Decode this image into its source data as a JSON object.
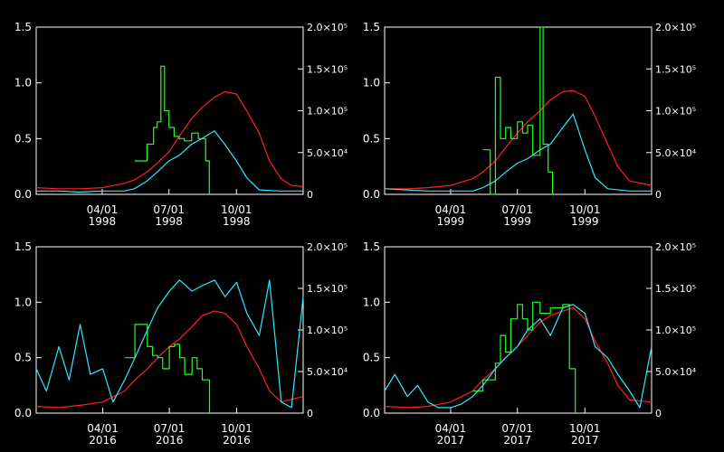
{
  "chart_data": [
    {
      "type": "line",
      "title": "",
      "ylim_left": [
        0,
        1.5
      ],
      "ylim_right": [
        0,
        200000
      ],
      "yticks_left": [
        "0.0",
        "0.5",
        "1.0",
        "1.5"
      ],
      "yticks_right": [
        "0",
        "5.0×10⁴",
        "1.0×10⁵",
        "1.5×10⁵",
        "2.0×10⁵"
      ],
      "xlim": [
        "1998-01-01",
        "1998-12-31"
      ],
      "xticks": [
        {
          "date": "1998-04-01",
          "line1": "04/01",
          "line2": "1998"
        },
        {
          "date": "1998-07-01",
          "line1": "07/01",
          "line2": "1998"
        },
        {
          "date": "1998-10-01",
          "line1": "10/01",
          "line2": "1998"
        }
      ],
      "series": [
        {
          "color": "#ff2020",
          "axis": "left",
          "step": false,
          "x": [
            "1998-01-01",
            "1998-02-01",
            "1998-03-01",
            "1998-04-01",
            "1998-05-01",
            "1998-05-15",
            "1998-06-01",
            "1998-06-15",
            "1998-07-01",
            "1998-07-15",
            "1998-08-01",
            "1998-08-15",
            "1998-09-01",
            "1998-09-15",
            "1998-10-01",
            "1998-10-15",
            "1998-11-01",
            "1998-11-15",
            "1998-12-01",
            "1998-12-15",
            "1998-12-31"
          ],
          "y": [
            0.06,
            0.05,
            0.05,
            0.06,
            0.1,
            0.13,
            0.2,
            0.28,
            0.38,
            0.52,
            0.68,
            0.78,
            0.87,
            0.92,
            0.9,
            0.75,
            0.55,
            0.3,
            0.14,
            0.08,
            0.07
          ]
        },
        {
          "color": "#20ff20",
          "axis": "left",
          "step": true,
          "x": [
            "1998-05-15",
            "1998-06-01",
            "1998-06-10",
            "1998-06-15",
            "1998-06-20",
            "1998-06-25",
            "1998-07-01",
            "1998-07-08",
            "1998-07-15",
            "1998-07-22",
            "1998-08-01",
            "1998-08-10",
            "1998-08-20",
            "1998-08-25"
          ],
          "y": [
            0.3,
            0.45,
            0.6,
            0.65,
            1.15,
            0.75,
            0.6,
            0.52,
            0.5,
            0.48,
            0.55,
            0.5,
            0.3,
            0
          ]
        },
        {
          "color": "#30e8ff",
          "axis": "left",
          "step": false,
          "x": [
            "1998-01-01",
            "1998-02-01",
            "1998-03-01",
            "1998-04-01",
            "1998-05-01",
            "1998-05-15",
            "1998-06-01",
            "1998-06-15",
            "1998-07-01",
            "1998-07-15",
            "1998-08-01",
            "1998-08-15",
            "1998-09-01",
            "1998-09-15",
            "1998-10-01",
            "1998-10-15",
            "1998-11-01",
            "1998-12-01",
            "1998-12-31"
          ],
          "y": [
            0.03,
            0.03,
            0.02,
            0.03,
            0.03,
            0.05,
            0.12,
            0.2,
            0.3,
            0.35,
            0.45,
            0.5,
            0.57,
            0.45,
            0.3,
            0.15,
            0.04,
            0.03,
            0.03
          ]
        }
      ]
    },
    {
      "type": "line",
      "title": "",
      "ylim_left": [
        0,
        1.5
      ],
      "ylim_right": [
        0,
        200000
      ],
      "yticks_left": [
        "0.0",
        "0.5",
        "1.0",
        "1.5"
      ],
      "yticks_right": [
        "0",
        "5.0×10⁴",
        "1.0×10⁵",
        "1.5×10⁵",
        "2.0×10⁵"
      ],
      "xlim": [
        "1999-01-01",
        "1999-12-31"
      ],
      "xticks": [
        {
          "date": "1999-04-01",
          "line1": "04/01",
          "line2": "1999"
        },
        {
          "date": "1999-07-01",
          "line1": "07/01",
          "line2": "1999"
        },
        {
          "date": "1999-10-01",
          "line1": "10/01",
          "line2": "1999"
        }
      ],
      "series": [
        {
          "color": "#ff2020",
          "axis": "left",
          "step": false,
          "x": [
            "1999-01-01",
            "1999-02-01",
            "1999-03-01",
            "1999-04-01",
            "1999-05-01",
            "1999-05-15",
            "1999-06-01",
            "1999-06-15",
            "1999-07-01",
            "1999-07-15",
            "1999-08-01",
            "1999-08-15",
            "1999-09-01",
            "1999-09-15",
            "1999-10-01",
            "1999-10-15",
            "1999-11-01",
            "1999-11-15",
            "1999-12-01",
            "1999-12-31"
          ],
          "y": [
            0.05,
            0.05,
            0.06,
            0.08,
            0.14,
            0.2,
            0.3,
            0.42,
            0.55,
            0.65,
            0.75,
            0.85,
            0.92,
            0.93,
            0.88,
            0.7,
            0.45,
            0.25,
            0.12,
            0.08
          ]
        },
        {
          "color": "#20ff20",
          "axis": "left",
          "step": true,
          "x": [
            "1999-05-15",
            "1999-05-25",
            "1999-06-01",
            "1999-06-08",
            "1999-06-15",
            "1999-06-22",
            "1999-07-01",
            "1999-07-08",
            "1999-07-15",
            "1999-07-22",
            "1999-08-01",
            "1999-08-05",
            "1999-08-12",
            "1999-08-18"
          ],
          "y": [
            0.4,
            0.0,
            1.05,
            0.5,
            0.6,
            0.5,
            0.65,
            0.55,
            0.62,
            0.35,
            1.5,
            0.45,
            0.2,
            0
          ]
        },
        {
          "color": "#30e8ff",
          "axis": "left",
          "step": false,
          "x": [
            "1999-01-01",
            "1999-02-01",
            "1999-03-01",
            "1999-04-01",
            "1999-05-01",
            "1999-05-15",
            "1999-06-01",
            "1999-06-15",
            "1999-07-01",
            "1999-07-15",
            "1999-08-01",
            "1999-08-15",
            "1999-09-01",
            "1999-09-15",
            "1999-10-01",
            "1999-10-15",
            "1999-11-01",
            "1999-12-01",
            "1999-12-31"
          ],
          "y": [
            0.05,
            0.04,
            0.03,
            0.03,
            0.03,
            0.06,
            0.12,
            0.2,
            0.28,
            0.32,
            0.4,
            0.45,
            0.6,
            0.72,
            0.4,
            0.15,
            0.05,
            0.03,
            0.03
          ]
        }
      ]
    },
    {
      "type": "line",
      "title": "",
      "ylim_left": [
        0,
        1.5
      ],
      "ylim_right": [
        0,
        200000
      ],
      "yticks_left": [
        "0.0",
        "0.5",
        "1.0",
        "1.5"
      ],
      "yticks_right": [
        "0",
        "5.0×10⁴",
        "1.0×10⁵",
        "1.5×10⁵",
        "2.0×10⁵"
      ],
      "xlim": [
        "2016-01-01",
        "2016-12-31"
      ],
      "xticks": [
        {
          "date": "2016-04-01",
          "line1": "04/01",
          "line2": "2016"
        },
        {
          "date": "2016-07-01",
          "line1": "07/01",
          "line2": "2016"
        },
        {
          "date": "2016-10-01",
          "line1": "10/01",
          "line2": "2016"
        }
      ],
      "series": [
        {
          "color": "#ff2020",
          "axis": "left",
          "step": false,
          "x": [
            "2016-01-01",
            "2016-02-01",
            "2016-03-01",
            "2016-04-01",
            "2016-05-01",
            "2016-05-15",
            "2016-06-01",
            "2016-06-15",
            "2016-07-01",
            "2016-07-15",
            "2016-08-01",
            "2016-08-15",
            "2016-09-01",
            "2016-09-15",
            "2016-10-01",
            "2016-10-15",
            "2016-11-01",
            "2016-11-15",
            "2016-12-01",
            "2016-12-31"
          ],
          "y": [
            0.06,
            0.05,
            0.07,
            0.1,
            0.2,
            0.3,
            0.4,
            0.5,
            0.6,
            0.67,
            0.78,
            0.88,
            0.92,
            0.9,
            0.8,
            0.6,
            0.4,
            0.2,
            0.1,
            0.15
          ]
        },
        {
          "color": "#20ff20",
          "axis": "left",
          "step": true,
          "x": [
            "2016-05-01",
            "2016-05-15",
            "2016-06-01",
            "2016-06-08",
            "2016-06-15",
            "2016-06-22",
            "2016-07-01",
            "2016-07-08",
            "2016-07-15",
            "2016-07-22",
            "2016-08-01",
            "2016-08-08",
            "2016-08-15",
            "2016-08-25"
          ],
          "y": [
            0.5,
            0.8,
            0.6,
            0.52,
            0.5,
            0.4,
            0.6,
            0.62,
            0.5,
            0.35,
            0.5,
            0.4,
            0.3,
            0
          ]
        },
        {
          "color": "#30e8ff",
          "axis": "left",
          "step": false,
          "x": [
            "2016-01-01",
            "2016-01-15",
            "2016-02-01",
            "2016-02-15",
            "2016-03-01",
            "2016-03-15",
            "2016-04-01",
            "2016-04-15",
            "2016-05-01",
            "2016-05-15",
            "2016-06-01",
            "2016-06-15",
            "2016-07-01",
            "2016-07-15",
            "2016-08-01",
            "2016-08-15",
            "2016-09-01",
            "2016-09-15",
            "2016-10-01",
            "2016-10-15",
            "2016-11-01",
            "2016-11-15",
            "2016-12-01",
            "2016-12-15",
            "2016-12-31"
          ],
          "y": [
            0.4,
            0.2,
            0.6,
            0.3,
            0.8,
            0.35,
            0.4,
            0.1,
            0.3,
            0.5,
            0.75,
            0.95,
            1.1,
            1.2,
            1.1,
            1.15,
            1.2,
            1.05,
            1.18,
            0.9,
            0.7,
            1.2,
            0.1,
            0.05,
            1.05
          ]
        }
      ]
    },
    {
      "type": "line",
      "title": "",
      "ylim_left": [
        0,
        1.5
      ],
      "ylim_right": [
        0,
        200000
      ],
      "yticks_left": [
        "0.0",
        "0.5",
        "1.0",
        "1.5"
      ],
      "yticks_right": [
        "0",
        "5.0×10⁴",
        "1.0×10⁵",
        "1.5×10⁵",
        "2.0×10⁵"
      ],
      "xlim": [
        "2017-01-01",
        "2017-12-31"
      ],
      "xticks": [
        {
          "date": "2017-04-01",
          "line1": "04/01",
          "line2": "2017"
        },
        {
          "date": "2017-07-01",
          "line1": "07/01",
          "line2": "2017"
        },
        {
          "date": "2017-10-01",
          "line1": "10/01",
          "line2": "2017"
        }
      ],
      "series": [
        {
          "color": "#ff2020",
          "axis": "left",
          "step": false,
          "x": [
            "2017-01-01",
            "2017-02-01",
            "2017-03-01",
            "2017-04-01",
            "2017-05-01",
            "2017-05-15",
            "2017-06-01",
            "2017-06-15",
            "2017-07-01",
            "2017-07-15",
            "2017-08-01",
            "2017-08-15",
            "2017-09-01",
            "2017-09-15",
            "2017-10-01",
            "2017-10-15",
            "2017-11-01",
            "2017-11-15",
            "2017-12-01",
            "2017-12-31"
          ],
          "y": [
            0.06,
            0.05,
            0.06,
            0.1,
            0.2,
            0.3,
            0.4,
            0.5,
            0.6,
            0.7,
            0.82,
            0.88,
            0.92,
            0.95,
            0.85,
            0.65,
            0.45,
            0.25,
            0.12,
            0.1
          ]
        },
        {
          "color": "#20ff20",
          "axis": "left",
          "step": true,
          "x": [
            "2017-05-01",
            "2017-05-15",
            "2017-06-01",
            "2017-06-08",
            "2017-06-15",
            "2017-06-22",
            "2017-07-01",
            "2017-07-08",
            "2017-07-15",
            "2017-07-22",
            "2017-08-01",
            "2017-08-15",
            "2017-09-01",
            "2017-09-10",
            "2017-09-18"
          ],
          "y": [
            0.2,
            0.3,
            0.45,
            0.7,
            0.55,
            0.85,
            0.98,
            0.85,
            0.75,
            1.0,
            0.9,
            0.95,
            0.98,
            0.4,
            0
          ]
        },
        {
          "color": "#30e8ff",
          "axis": "left",
          "step": false,
          "x": [
            "2017-01-01",
            "2017-01-15",
            "2017-02-01",
            "2017-02-15",
            "2017-03-01",
            "2017-03-15",
            "2017-04-01",
            "2017-04-15",
            "2017-05-01",
            "2017-05-15",
            "2017-06-01",
            "2017-06-15",
            "2017-07-01",
            "2017-07-15",
            "2017-08-01",
            "2017-08-15",
            "2017-09-01",
            "2017-09-15",
            "2017-10-01",
            "2017-10-15",
            "2017-11-01",
            "2017-11-15",
            "2017-12-01",
            "2017-12-15",
            "2017-12-31"
          ],
          "y": [
            0.2,
            0.35,
            0.15,
            0.25,
            0.1,
            0.05,
            0.05,
            0.08,
            0.15,
            0.25,
            0.4,
            0.5,
            0.6,
            0.75,
            0.85,
            0.7,
            0.95,
            0.98,
            0.9,
            0.6,
            0.5,
            0.35,
            0.2,
            0.05,
            0.6
          ]
        }
      ]
    }
  ]
}
